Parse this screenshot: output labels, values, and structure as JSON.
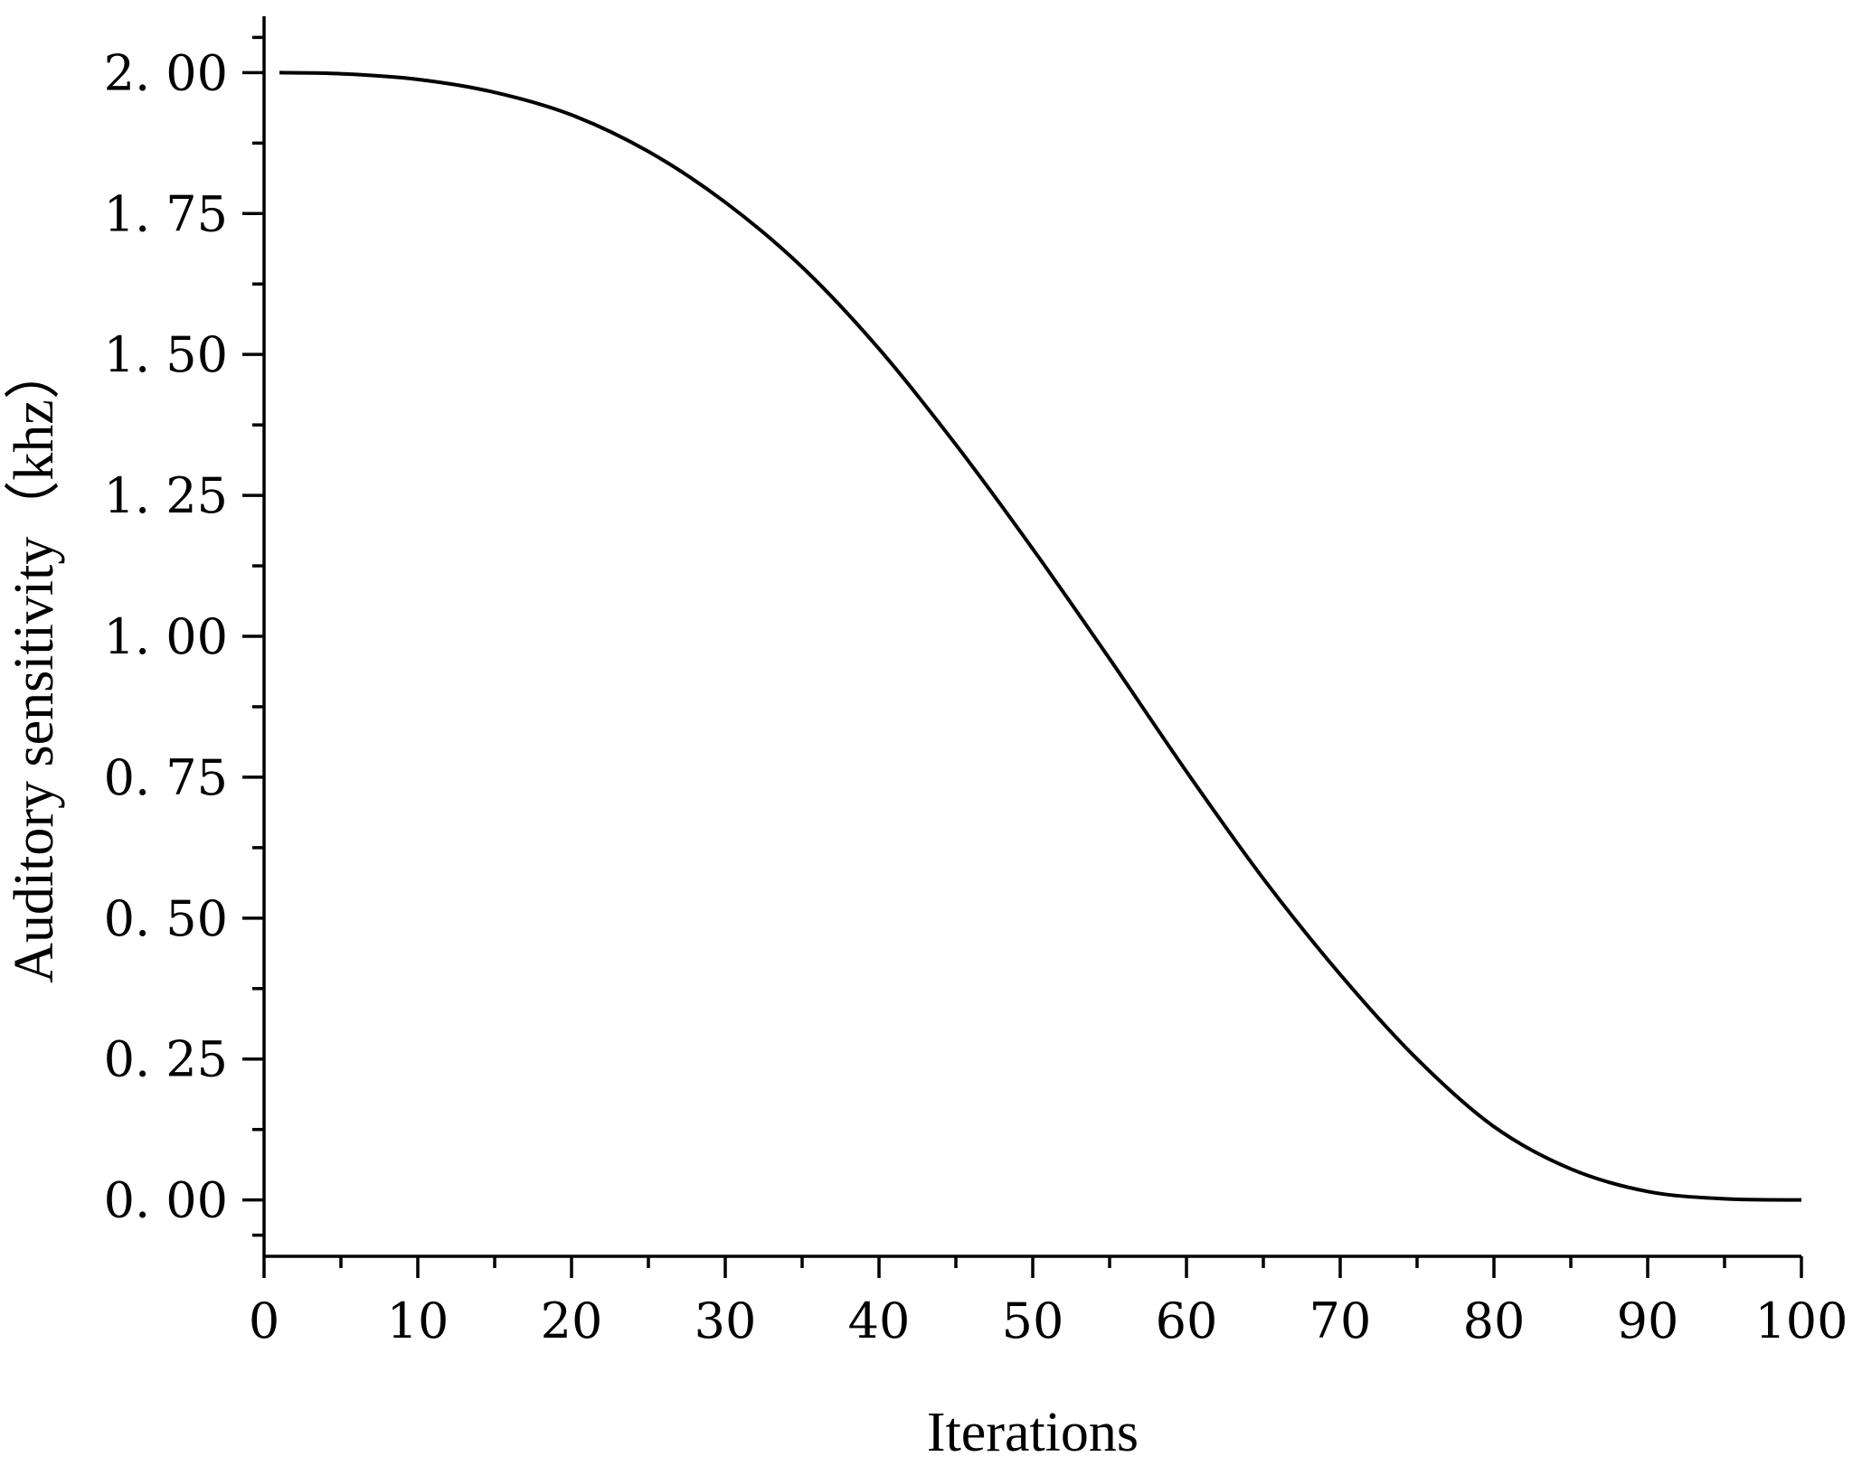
{
  "chart_data": {
    "type": "line",
    "title": "",
    "xlabel": "Iterations",
    "ylabel": "Auditory sensitivity（khz）",
    "xlim": [
      0,
      100
    ],
    "ylim": [
      -0.1,
      2.1
    ],
    "x_ticks": [
      0,
      10,
      20,
      30,
      40,
      50,
      60,
      70,
      80,
      90,
      100
    ],
    "x_tick_labels": [
      "0",
      "10",
      "20",
      "30",
      "40",
      "50",
      "60",
      "70",
      "80",
      "90",
      "100"
    ],
    "x_minor_ticks": [
      5,
      15,
      25,
      35,
      45,
      55,
      65,
      75,
      85,
      95
    ],
    "y_ticks": [
      0,
      0.25,
      0.5,
      0.75,
      1.0,
      1.25,
      1.5,
      1.75,
      2.0
    ],
    "y_tick_labels": [
      "0. 00",
      "0. 25",
      "0. 50",
      "0. 75",
      "1. 00",
      "1. 25",
      "1. 50",
      "1. 75",
      "2. 00"
    ],
    "y_minor_ticks": [
      -0.0625,
      0.125,
      0.375,
      0.625,
      0.875,
      1.125,
      1.375,
      1.625,
      1.875,
      2.0625
    ],
    "grid": false,
    "series": [
      {
        "color": "#000000",
        "x": [
          1,
          5,
          10,
          15,
          20,
          25,
          30,
          35,
          40,
          45,
          50,
          55,
          60,
          65,
          70,
          75,
          80,
          85,
          90,
          95,
          100
        ],
        "y": [
          2.0,
          1.998,
          1.988,
          1.965,
          1.925,
          1.86,
          1.77,
          1.655,
          1.51,
          1.34,
          1.155,
          0.96,
          0.76,
          0.57,
          0.4,
          0.25,
          0.13,
          0.055,
          0.015,
          0.002,
          0.0
        ]
      }
    ]
  }
}
